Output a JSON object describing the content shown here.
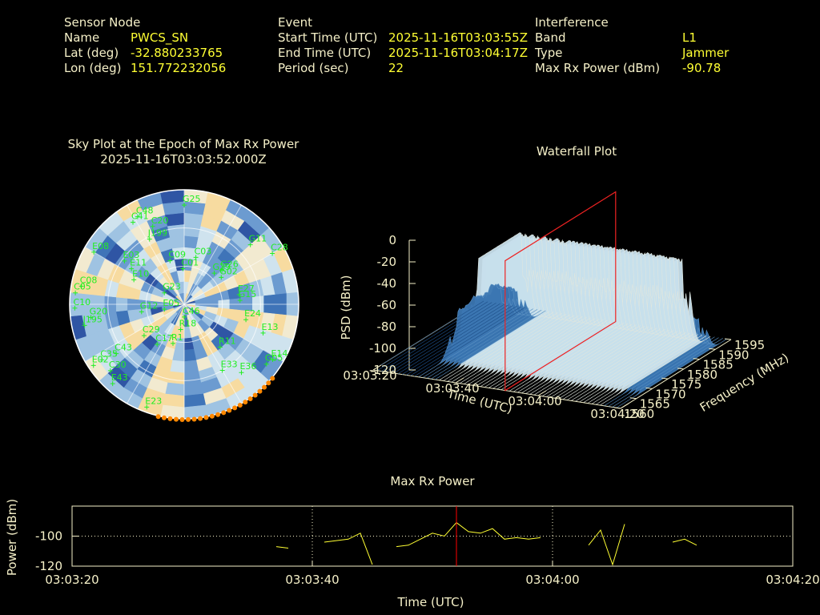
{
  "header": {
    "sensor": {
      "heading": "Sensor Node",
      "rows": [
        {
          "label": "Name",
          "value": "PWCS_SN"
        },
        {
          "label": "Lat (deg)",
          "value": "-32.880233765"
        },
        {
          "label": "Lon (deg)",
          "value": "151.772232056"
        }
      ]
    },
    "event": {
      "heading": "Event",
      "rows": [
        {
          "label": "Start Time (UTC)",
          "value": "2025-11-16T03:03:55Z"
        },
        {
          "label": "End Time (UTC)",
          "value": "2025-11-16T03:04:17Z"
        },
        {
          "label": "Period (sec)",
          "value": "22"
        }
      ]
    },
    "interference": {
      "heading": "Interference",
      "rows": [
        {
          "label": "Band",
          "value": "L1"
        },
        {
          "label": "Type",
          "value": "Jammer"
        },
        {
          "label": "Max Rx Power (dBm)",
          "value": "-90.78"
        }
      ]
    }
  },
  "sky_plot": {
    "title": "Sky Plot at the Epoch of Max Rx Power",
    "subtitle": "2025-11-16T03:03:52.000Z",
    "colors": {
      "sat_label": "#22ee22",
      "jam_dir": "#ff8800"
    }
  },
  "waterfall": {
    "title": "Waterfall Plot",
    "z_label": "PSD (dBm)",
    "x_label": "Time (UTC)",
    "y_label": "Frequency (MHz)"
  },
  "max_power": {
    "title": "Max Rx Power",
    "y_label": "Power (dBm)",
    "x_label": "Time (UTC)",
    "colors": {
      "line": "#ffff33",
      "marker": "#ff0000"
    }
  },
  "chart_data": [
    {
      "type": "scatter",
      "title": "Sky Plot at the Epoch of Max Rx Power",
      "subtitle": "2025-11-16T03:03:52.000Z",
      "projection": "polar (azimuth / elevation)",
      "satellites": [
        {
          "id": "G25",
          "az": 0,
          "el": 12
        },
        {
          "id": "C48",
          "az": 332,
          "el": 12
        },
        {
          "id": "C41",
          "az": 328,
          "el": 14
        },
        {
          "id": "C20",
          "az": 338,
          "el": 24
        },
        {
          "id": "J199",
          "az": 332,
          "el": 32
        },
        {
          "id": "E08",
          "az": 300,
          "el": 8
        },
        {
          "id": "E03",
          "az": 306,
          "el": 32
        },
        {
          "id": "C09",
          "az": 342,
          "el": 54
        },
        {
          "id": "C01",
          "az": 358,
          "el": 62
        },
        {
          "id": "C03",
          "az": 14,
          "el": 52
        },
        {
          "id": "G11",
          "az": 48,
          "el": 20
        },
        {
          "id": "C28",
          "az": 60,
          "el": 10
        },
        {
          "id": "G29",
          "az": 44,
          "el": 56
        },
        {
          "id": "G26",
          "az": 48,
          "el": 50
        },
        {
          "id": "G02",
          "az": 54,
          "el": 54
        },
        {
          "id": "E10",
          "az": 296,
          "el": 46
        },
        {
          "id": "E11",
          "az": 304,
          "el": 40
        },
        {
          "id": "C08",
          "az": 280,
          "el": 8
        },
        {
          "id": "C05",
          "az": 276,
          "el": 4
        },
        {
          "id": "C10",
          "az": 268,
          "el": 4
        },
        {
          "id": "J195",
          "az": 258,
          "el": 10
        },
        {
          "id": "G20",
          "az": 262,
          "el": 16
        },
        {
          "id": "G23",
          "az": 300,
          "el": 72
        },
        {
          "id": "G12",
          "az": 260,
          "el": 56
        },
        {
          "id": "E05",
          "az": 256,
          "el": 74
        },
        {
          "id": "E27",
          "az": 80,
          "el": 46
        },
        {
          "id": "G15",
          "az": 86,
          "el": 46
        },
        {
          "id": "E24",
          "az": 104,
          "el": 40
        },
        {
          "id": "E13",
          "az": 110,
          "el": 24
        },
        {
          "id": "E14",
          "az": 122,
          "el": 8
        },
        {
          "id": "G05",
          "az": 126,
          "el": 10
        },
        {
          "id": "C29",
          "az": 232,
          "el": 50
        },
        {
          "id": "C17",
          "az": 214,
          "el": 52
        },
        {
          "id": "C46",
          "az": 180,
          "el": 80
        },
        {
          "id": "R18",
          "az": 188,
          "el": 70
        },
        {
          "id": "R1",
          "az": 196,
          "el": 58
        },
        {
          "id": "R11",
          "az": 140,
          "el": 46
        },
        {
          "id": "E33",
          "az": 150,
          "el": 30
        },
        {
          "id": "E36",
          "az": 140,
          "el": 20
        },
        {
          "id": "C43",
          "az": 234,
          "el": 24
        },
        {
          "id": "C35",
          "az": 236,
          "el": 12
        },
        {
          "id": "C30",
          "az": 228,
          "el": 12
        },
        {
          "id": "E02",
          "az": 236,
          "el": 4
        },
        {
          "id": "E43",
          "az": 222,
          "el": 6
        },
        {
          "id": "E23",
          "az": 200,
          "el": 4
        }
      ],
      "jammer_direction": {
        "az_from": 130,
        "az_to": 195,
        "el": 0
      }
    },
    {
      "type": "area",
      "title": "Waterfall Plot",
      "xlabel": "Time (UTC)",
      "ylabel": "Frequency (MHz)",
      "zlabel": "PSD (dBm)",
      "x_ticks": [
        "03:03:20",
        "03:03:40",
        "03:04:00",
        "03:04:20"
      ],
      "y_ticks": [
        1560,
        1565,
        1570,
        1575,
        1580,
        1585,
        1590,
        1595
      ],
      "z_ticks": [
        0,
        -20,
        -40,
        -60,
        -80,
        -100,
        -120
      ],
      "xlim": [
        "03:03:20",
        "03:04:20"
      ],
      "ylim": [
        1560,
        1595
      ],
      "zlim": [
        -120,
        0
      ],
      "peak_psd_dbm": -30,
      "floor_psd_dbm": -120,
      "marker_time": "03:03:52"
    },
    {
      "type": "line",
      "title": "Max Rx Power",
      "xlabel": "Time (UTC)",
      "ylabel": "Power (dBm)",
      "x_ticks": [
        "03:03:20",
        "03:03:40",
        "03:04:00",
        "03:04:20"
      ],
      "y_ticks": [
        -100,
        -120
      ],
      "xlim": [
        "03:03:20",
        "03:04:20"
      ],
      "ylim": [
        -120,
        -80
      ],
      "grid": true,
      "marker_time": "03:03:52",
      "series": [
        {
          "segments": [
            [
              [
                "03:03:37",
                -107
              ],
              [
                "03:03:38",
                -108
              ]
            ],
            [
              [
                "03:03:41",
                -104
              ],
              [
                "03:03:43",
                -102
              ],
              [
                "03:03:44",
                -98
              ],
              [
                "03:03:45",
                -119
              ]
            ],
            [
              [
                "03:03:47",
                -107
              ],
              [
                "03:03:48",
                -106
              ],
              [
                "03:03:50",
                -98
              ],
              [
                "03:03:51",
                -100
              ],
              [
                "03:03:52",
                -91
              ],
              [
                "03:03:53",
                -97
              ],
              [
                "03:03:54",
                -98
              ],
              [
                "03:03:55",
                -95
              ],
              [
                "03:03:56",
                -102
              ],
              [
                "03:03:57",
                -101
              ],
              [
                "03:03:58",
                -102
              ],
              [
                "03:03:59",
                -101
              ]
            ],
            [
              [
                "03:04:03",
                -106
              ],
              [
                "03:04:04",
                -96
              ],
              [
                "03:04:05",
                -119
              ],
              [
                "03:04:06",
                -92
              ]
            ],
            [
              [
                "03:04:10",
                -104
              ],
              [
                "03:04:11",
                -102
              ],
              [
                "03:04:12",
                -106
              ]
            ]
          ]
        }
      ]
    }
  ]
}
